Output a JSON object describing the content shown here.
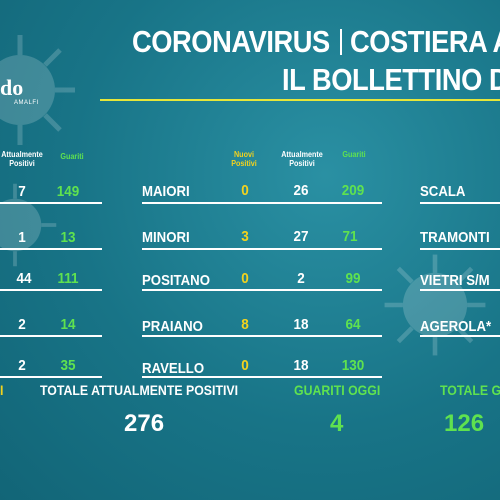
{
  "header": {
    "title_line1_left": "CORONAVIRUS",
    "title_line1_right": "COSTIERA A",
    "title_line2": "IL BOLLETTINO D"
  },
  "logo": {
    "text": "do",
    "sub": "AMALFI"
  },
  "columns": {
    "attualmente_positivi": "Attualmente Positivi",
    "guariti": "Guariti",
    "nuovi_positivi": "Nuovi Positivi"
  },
  "left_rows": [
    {
      "attuali": "7",
      "guariti": "149"
    },
    {
      "attuali": "1",
      "guariti": "13"
    },
    {
      "attuali": "44",
      "guariti": "111"
    },
    {
      "attuali": "2",
      "guariti": "14"
    },
    {
      "attuali": "2",
      "guariti": "35"
    }
  ],
  "middle_rows": [
    {
      "town": "MAIORI",
      "nuovi": "0",
      "attuali": "26",
      "guariti": "209"
    },
    {
      "town": "MINORI",
      "nuovi": "3",
      "attuali": "27",
      "guariti": "71"
    },
    {
      "town": "POSITANO",
      "nuovi": "0",
      "attuali": "2",
      "guariti": "99"
    },
    {
      "town": "PRAIANO",
      "nuovi": "8",
      "attuali": "18",
      "guariti": "64"
    },
    {
      "town": "RAVELLO",
      "nuovi": "0",
      "attuali": "18",
      "guariti": "130"
    }
  ],
  "right_rows": [
    {
      "town": "SCALA"
    },
    {
      "town": "TRAMONTI"
    },
    {
      "town": "VIETRI S/M"
    },
    {
      "town": "AGEROLA*"
    }
  ],
  "footer": {
    "left_fragment": "I",
    "totale_attualmente_positivi_label": "TOTALE ATTUALMENTE POSITIVI",
    "totale_attualmente_positivi_value": "276",
    "guariti_oggi_label": "GUARITI OGGI",
    "guariti_oggi_value": "4",
    "totale_guariti_label": "TOTALE G",
    "totale_guariti_value": "126"
  },
  "colors": {
    "background": "#1a7a8e",
    "green": "#5fe24f",
    "yellow": "#f2d21e",
    "underline": "#e6e63a"
  }
}
